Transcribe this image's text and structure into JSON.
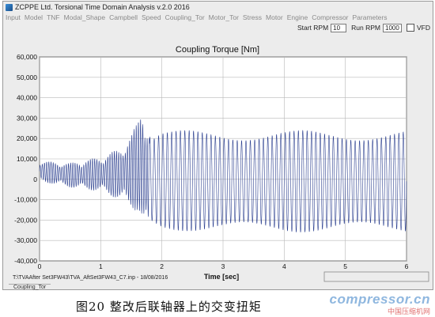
{
  "window": {
    "title": "ZCPPE Ltd. Torsional Time Domain Analysis v.2.0 2016"
  },
  "menu": [
    {
      "label": "Input"
    },
    {
      "label": "Model"
    },
    {
      "label": "TNF"
    },
    {
      "label": "Modal_Shape"
    },
    {
      "label": "Campbell"
    },
    {
      "label": "Speed"
    },
    {
      "label": "Coupling_Tor"
    },
    {
      "label": "Motor_Tor"
    },
    {
      "label": "Stress"
    },
    {
      "label": "Motor"
    },
    {
      "label": "Engine"
    },
    {
      "label": "Compressor"
    },
    {
      "label": "Parameters"
    }
  ],
  "rpm": {
    "start_label": "Start RPM",
    "start_value": "10",
    "run_label": "Run RPM",
    "run_value": "1000",
    "vfd_label": "VFD"
  },
  "status": {
    "file_path": "T:\\TVAAfter Set3FW43\\TVA_AftSet3FW43_C7.inp - 18/08/2016",
    "tab_label": "Coupling_Tor"
  },
  "caption": "图20  整改后联轴器上的交变扭矩",
  "watermark": {
    "main": "compressor.cn",
    "sub": "中国压缩机网"
  },
  "colors": {
    "trace": "#2b3f8f",
    "plot_bg": "#ffffff",
    "grid": "#b8b8b8"
  },
  "chart_data": {
    "type": "line",
    "title": "Coupling Torque [Nm]",
    "xlabel": "Time [sec]",
    "ylabel": "",
    "xlim": [
      0,
      6
    ],
    "ylim": [
      -40000,
      60000
    ],
    "xticks": [
      "0",
      "1",
      "2",
      "3",
      "4",
      "5",
      "6"
    ],
    "yticks": [
      "60,000",
      "50,000",
      "40,000",
      "30,000",
      "20,000",
      "10,000",
      "0",
      "-10,000",
      "-20,000",
      "-30,000",
      "-40,000"
    ],
    "grid": true,
    "series": [
      {
        "values_description_envelope": true,
        "x": [
          0,
          0.5,
          1.0,
          1.3,
          1.5,
          1.6,
          1.65,
          1.7,
          1.75,
          1.8,
          1.85,
          1.9,
          2.0,
          3.0,
          4.0,
          5.0,
          6.0
        ],
        "upper": [
          9000,
          8000,
          11000,
          15000,
          22000,
          28000,
          34000,
          37000,
          30000,
          24000,
          22000,
          23000,
          24000,
          24000,
          24000,
          24000,
          24000
        ],
        "lower": [
          -1000,
          -4000,
          -6000,
          -10000,
          -14000,
          -16000,
          -20000,
          -29000,
          -26000,
          -24000,
          -23000,
          -24000,
          -25000,
          -26000,
          -26000,
          -26000,
          -26000
        ]
      }
    ]
  }
}
